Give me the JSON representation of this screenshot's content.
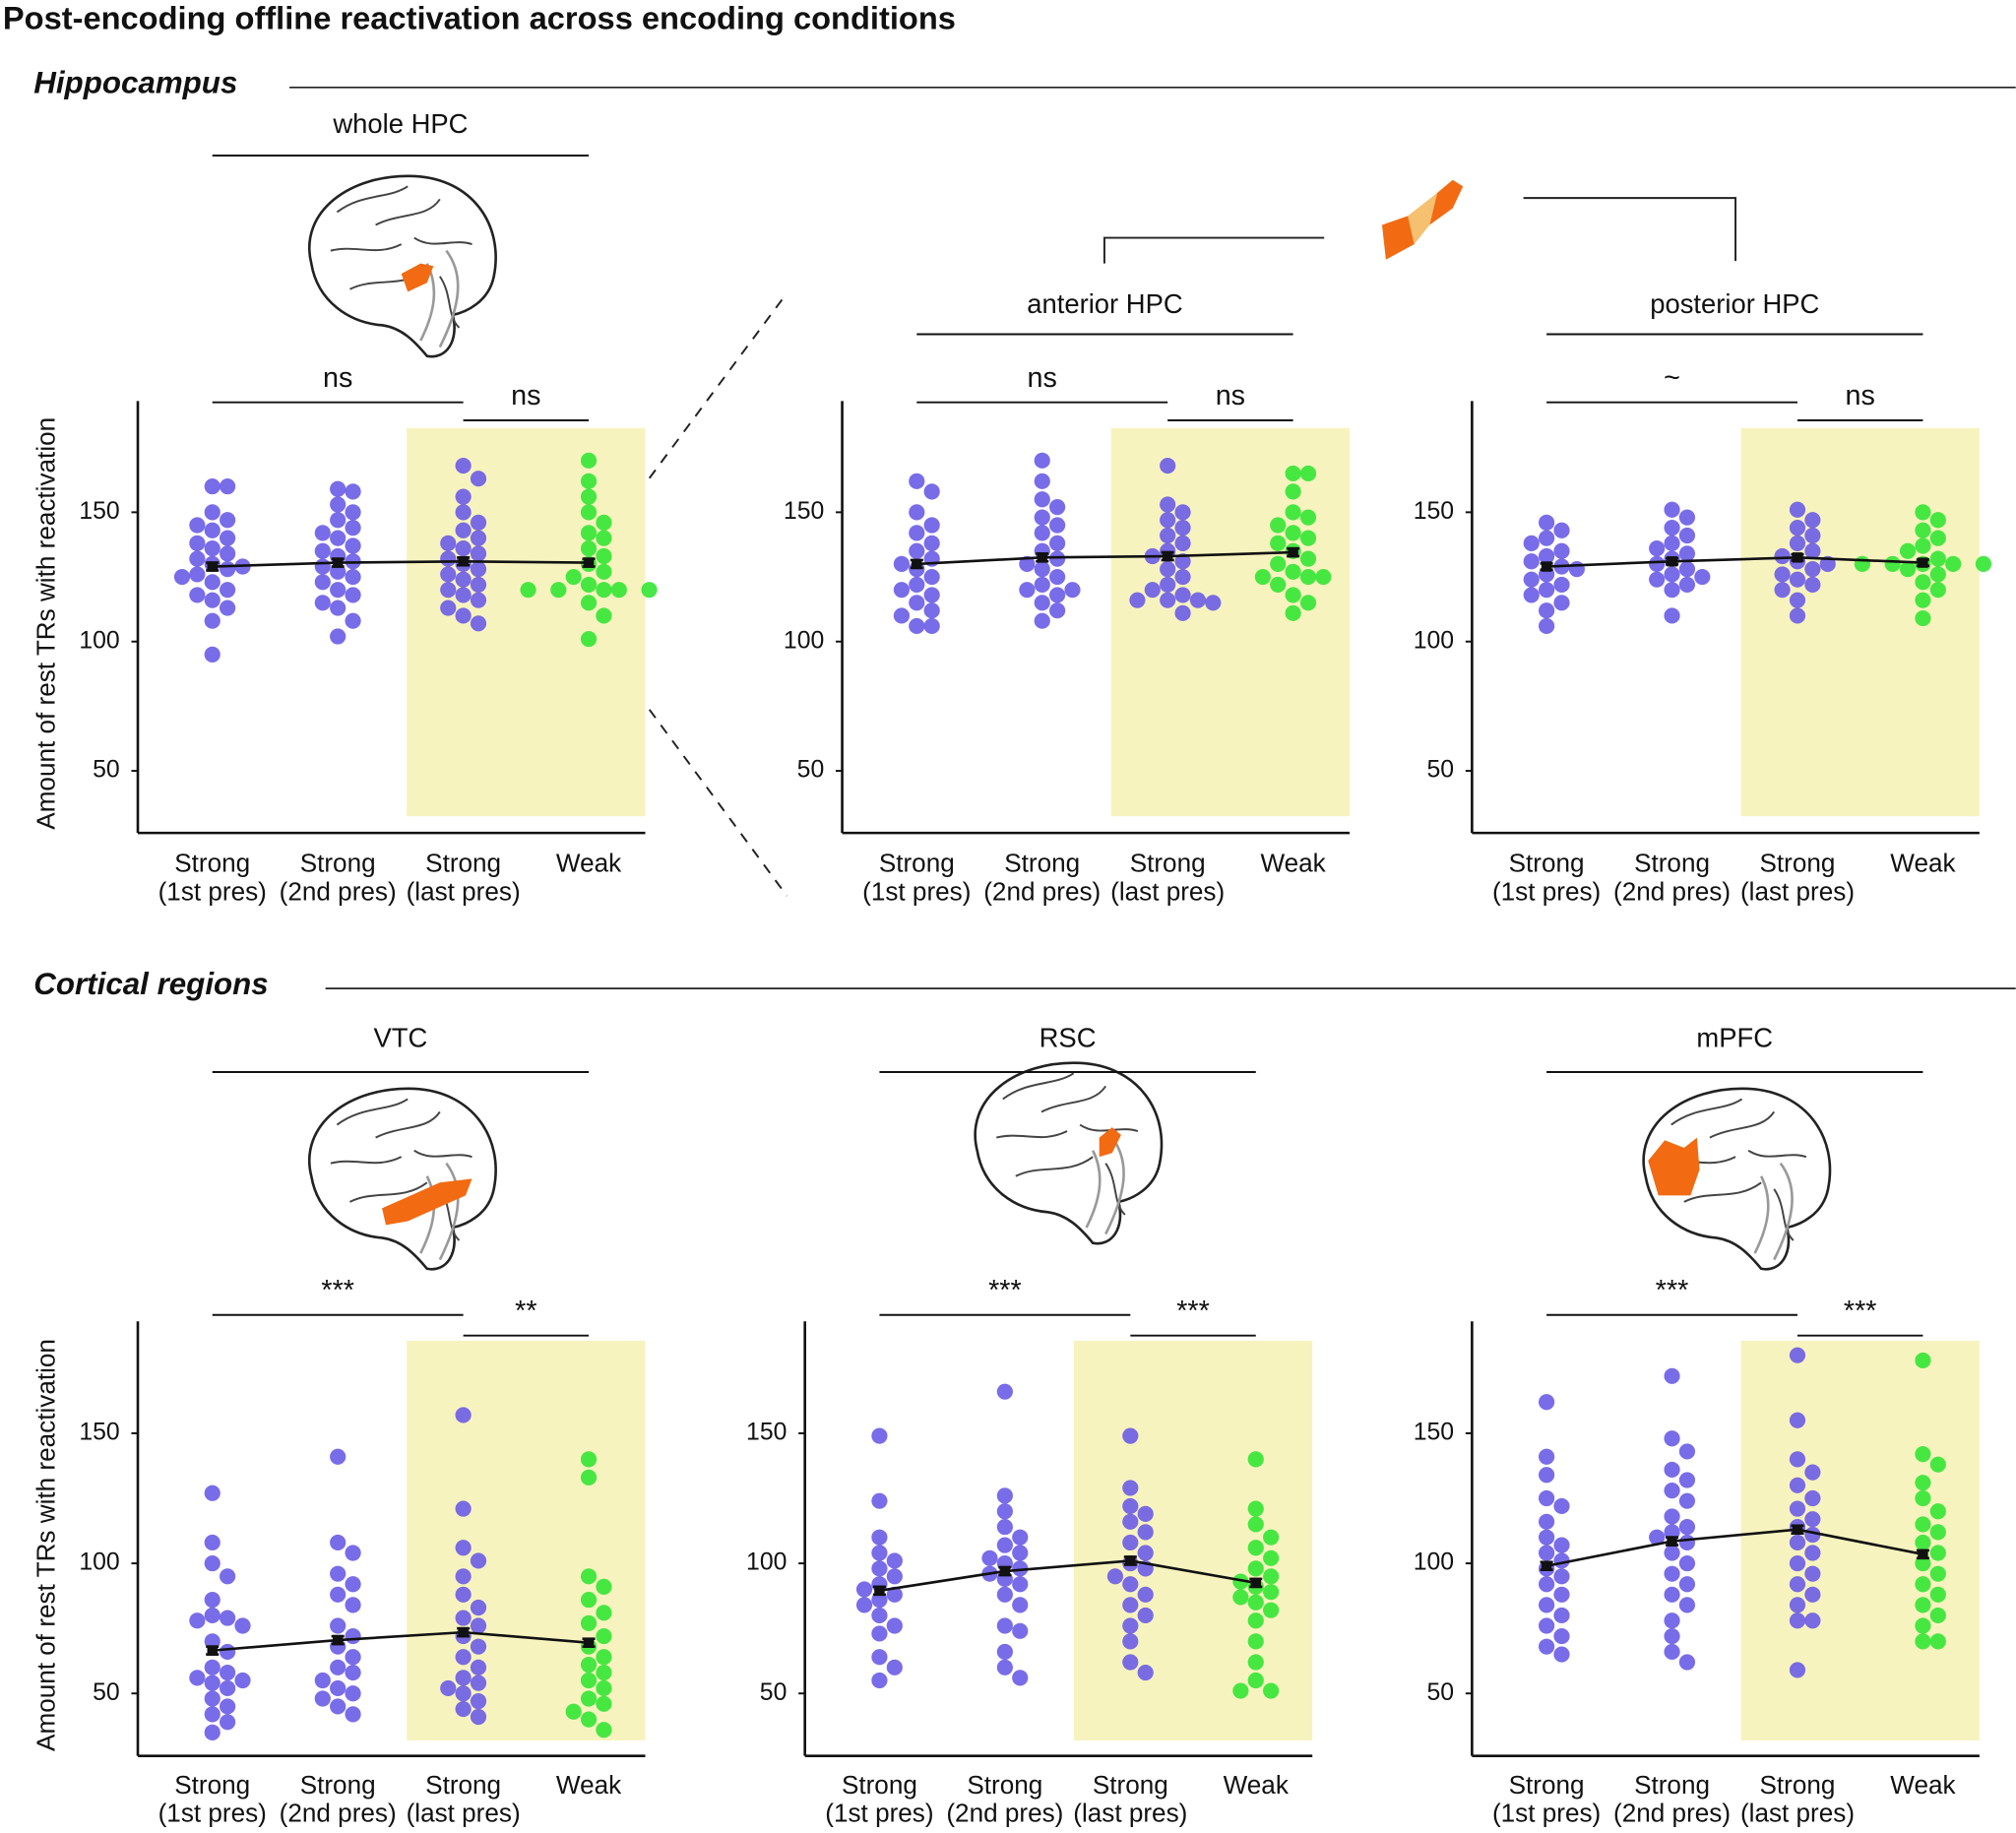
{
  "title": "Post-encoding offline reactivation across encoding conditions",
  "sections": [
    "Hippocampus",
    "Cortical regions"
  ],
  "chart_data": [
    {
      "type": "swarm",
      "title": "whole HPC",
      "ylabel": "Amount of rest TRs with reactivation",
      "categories": [
        [
          "Strong",
          "(1st pres)"
        ],
        [
          "Strong",
          "(2nd pres)"
        ],
        [
          "Strong",
          "(last pres)"
        ],
        [
          "Weak"
        ]
      ],
      "annotations": [
        "ns",
        "ns"
      ],
      "ylim": [
        26,
        193
      ],
      "yticks": [
        50,
        100,
        150
      ],
      "groups": [
        {
          "color": "#6a5ce6",
          "mean": 129,
          "sem": 1.5,
          "values": [
            160,
            160,
            150,
            147,
            145,
            143,
            140,
            138,
            136,
            134,
            132,
            130,
            129,
            128,
            126,
            125,
            123,
            120,
            118,
            116,
            113,
            108,
            95
          ]
        },
        {
          "color": "#6a5ce6",
          "mean": 130.5,
          "sem": 1.5,
          "values": [
            159,
            158,
            153,
            150,
            147,
            144,
            142,
            140,
            137,
            135,
            133,
            131,
            129,
            127,
            125,
            123,
            120,
            118,
            115,
            113,
            108,
            102
          ]
        },
        {
          "color": "#6a5ce6",
          "mean": 131,
          "sem": 1.5,
          "values": [
            168,
            163,
            156,
            150,
            146,
            143,
            140,
            138,
            136,
            134,
            132,
            130,
            128,
            126,
            124,
            122,
            120,
            118,
            116,
            113,
            110,
            107
          ]
        },
        {
          "color": "#33e633",
          "mean": 130.5,
          "sem": 1.5,
          "values": [
            170,
            162,
            156,
            150,
            146,
            142,
            140,
            136,
            133,
            130,
            127,
            125,
            122,
            120,
            120,
            120,
            120,
            120,
            115,
            110,
            101
          ]
        }
      ]
    },
    {
      "type": "swarm",
      "title": "anterior HPC",
      "categories": [
        [
          "Strong",
          "(1st pres)"
        ],
        [
          "Strong",
          "(2nd pres)"
        ],
        [
          "Strong",
          "(last pres)"
        ],
        [
          "Weak"
        ]
      ],
      "annotations": [
        "ns",
        "ns"
      ],
      "ylim": [
        26,
        193
      ],
      "yticks": [
        50,
        100,
        150
      ],
      "groups": [
        {
          "color": "#6a5ce6",
          "mean": 130,
          "sem": 1.5,
          "values": [
            162,
            158,
            150,
            145,
            142,
            138,
            135,
            132,
            130,
            128,
            125,
            122,
            120,
            118,
            115,
            112,
            110,
            106,
            106
          ]
        },
        {
          "color": "#6a5ce6",
          "mean": 132.5,
          "sem": 1.5,
          "values": [
            170,
            162,
            155,
            152,
            148,
            145,
            142,
            138,
            135,
            132,
            130,
            128,
            125,
            122,
            120,
            120,
            118,
            115,
            112,
            108
          ]
        },
        {
          "color": "#6a5ce6",
          "mean": 133,
          "sem": 1.5,
          "values": [
            168,
            153,
            150,
            147,
            144,
            141,
            138,
            135,
            133,
            131,
            128,
            125,
            122,
            120,
            118,
            116,
            116,
            116,
            115,
            111
          ]
        },
        {
          "color": "#33e633",
          "mean": 134.5,
          "sem": 1.5,
          "values": [
            165,
            165,
            158,
            150,
            148,
            145,
            142,
            140,
            138,
            135,
            132,
            130,
            127,
            125,
            125,
            125,
            122,
            118,
            115,
            111
          ]
        }
      ]
    },
    {
      "type": "swarm",
      "title": "posterior HPC",
      "categories": [
        [
          "Strong",
          "(1st pres)"
        ],
        [
          "Strong",
          "(2nd pres)"
        ],
        [
          "Strong",
          "(last pres)"
        ],
        [
          "Weak"
        ]
      ],
      "annotations": [
        "~",
        "ns"
      ],
      "ylim": [
        26,
        193
      ],
      "yticks": [
        50,
        100,
        150
      ],
      "groups": [
        {
          "color": "#6a5ce6",
          "mean": 129,
          "sem": 1.2,
          "values": [
            146,
            143,
            140,
            138,
            135,
            133,
            131,
            129,
            128,
            126,
            124,
            122,
            120,
            118,
            115,
            112,
            106
          ]
        },
        {
          "color": "#6a5ce6",
          "mean": 131,
          "sem": 1.2,
          "values": [
            151,
            148,
            144,
            141,
            138,
            136,
            134,
            132,
            130,
            128,
            126,
            125,
            124,
            122,
            120,
            110
          ]
        },
        {
          "color": "#6a5ce6",
          "mean": 132.5,
          "sem": 1.2,
          "values": [
            151,
            147,
            144,
            141,
            138,
            135,
            133,
            131,
            130,
            128,
            126,
            124,
            122,
            120,
            116,
            110
          ]
        },
        {
          "color": "#33e633",
          "mean": 130.5,
          "sem": 1.2,
          "values": [
            150,
            147,
            143,
            140,
            137,
            135,
            132,
            130,
            130,
            130,
            130,
            130,
            128,
            126,
            123,
            120,
            116,
            109
          ]
        }
      ]
    },
    {
      "type": "swarm",
      "title": "VTC",
      "ylabel": "Amount of rest TRs with reactivation",
      "categories": [
        [
          "Strong",
          "(1st pres)"
        ],
        [
          "Strong",
          "(2nd pres)"
        ],
        [
          "Strong",
          "(last pres)"
        ],
        [
          "Weak"
        ]
      ],
      "annotations": [
        "***",
        "**"
      ],
      "ylim": [
        26,
        193
      ],
      "yticks": [
        50,
        100,
        150
      ],
      "groups": [
        {
          "color": "#6a5ce6",
          "mean": 66.5,
          "sem": 1.5,
          "values": [
            127,
            108,
            100,
            95,
            86,
            80,
            79,
            78,
            76,
            70,
            66,
            60,
            58,
            56,
            55,
            54,
            52,
            48,
            45,
            42,
            39,
            35
          ]
        },
        {
          "color": "#6a5ce6",
          "mean": 70.5,
          "sem": 1.5,
          "values": [
            141,
            108,
            104,
            96,
            92,
            88,
            84,
            76,
            72,
            68,
            64,
            60,
            58,
            55,
            52,
            50,
            48,
            45,
            42
          ]
        },
        {
          "color": "#6a5ce6",
          "mean": 73.5,
          "sem": 1.5,
          "values": [
            157,
            121,
            106,
            101,
            95,
            88,
            83,
            79,
            76,
            72,
            68,
            64,
            60,
            56,
            54,
            52,
            50,
            47,
            44,
            41
          ]
        },
        {
          "color": "#33e633",
          "mean": 69.5,
          "sem": 1.5,
          "values": [
            140,
            133,
            95,
            91,
            86,
            81,
            77,
            72,
            68,
            64,
            61,
            58,
            55,
            52,
            48,
            46,
            43,
            40,
            36
          ]
        }
      ]
    },
    {
      "type": "swarm",
      "title": "RSC",
      "categories": [
        [
          "Strong",
          "(1st pres)"
        ],
        [
          "Strong",
          "(2nd pres)"
        ],
        [
          "Strong",
          "(last pres)"
        ],
        [
          "Weak"
        ]
      ],
      "annotations": [
        "***",
        "***"
      ],
      "ylim": [
        26,
        193
      ],
      "yticks": [
        50,
        100,
        150
      ],
      "groups": [
        {
          "color": "#6a5ce6",
          "mean": 89.5,
          "sem": 1.5,
          "values": [
            149,
            124,
            110,
            104,
            101,
            98,
            95,
            92,
            90,
            88,
            86,
            84,
            80,
            76,
            73,
            64,
            60,
            55
          ]
        },
        {
          "color": "#6a5ce6",
          "mean": 97,
          "sem": 1.5,
          "values": [
            166,
            126,
            120,
            114,
            110,
            107,
            104,
            102,
            100,
            98,
            96,
            94,
            92,
            88,
            84,
            76,
            74,
            66,
            60,
            56
          ]
        },
        {
          "color": "#6a5ce6",
          "mean": 101,
          "sem": 1.5,
          "values": [
            149,
            129,
            122,
            119,
            116,
            112,
            108,
            104,
            100,
            98,
            95,
            92,
            88,
            84,
            80,
            76,
            70,
            62,
            58
          ]
        },
        {
          "color": "#33e633",
          "mean": 92.5,
          "sem": 1.5,
          "values": [
            140,
            121,
            115,
            110,
            106,
            102,
            98,
            95,
            93,
            91,
            89,
            87,
            85,
            82,
            78,
            70,
            62,
            55,
            51,
            51
          ]
        }
      ]
    },
    {
      "type": "swarm",
      "title": "mPFC",
      "categories": [
        [
          "Strong",
          "(1st pres)"
        ],
        [
          "Strong",
          "(2nd pres)"
        ],
        [
          "Strong",
          "(last pres)"
        ],
        [
          "Weak"
        ]
      ],
      "annotations": [
        "***",
        "***"
      ],
      "ylim": [
        26,
        193
      ],
      "yticks": [
        50,
        100,
        150
      ],
      "groups": [
        {
          "color": "#6a5ce6",
          "mean": 99,
          "sem": 1.5,
          "values": [
            162,
            141,
            134,
            125,
            122,
            116,
            110,
            107,
            104,
            101,
            98,
            95,
            92,
            88,
            84,
            80,
            76,
            72,
            68,
            65
          ]
        },
        {
          "color": "#6a5ce6",
          "mean": 108.5,
          "sem": 1.5,
          "values": [
            172,
            148,
            143,
            136,
            132,
            128,
            124,
            118,
            114,
            112,
            110,
            108,
            104,
            100,
            96,
            92,
            88,
            84,
            78,
            72,
            66,
            62
          ]
        },
        {
          "color": "#6a5ce6",
          "mean": 113,
          "sem": 1.5,
          "values": [
            180,
            155,
            140,
            135,
            130,
            125,
            121,
            117,
            114,
            111,
            108,
            104,
            100,
            96,
            92,
            88,
            84,
            78,
            78,
            59
          ]
        },
        {
          "color": "#33e633",
          "mean": 103.5,
          "sem": 1.5,
          "values": [
            178,
            142,
            138,
            131,
            125,
            120,
            115,
            112,
            108,
            104,
            100,
            96,
            92,
            88,
            84,
            80,
            76,
            70,
            70
          ]
        }
      ]
    }
  ]
}
